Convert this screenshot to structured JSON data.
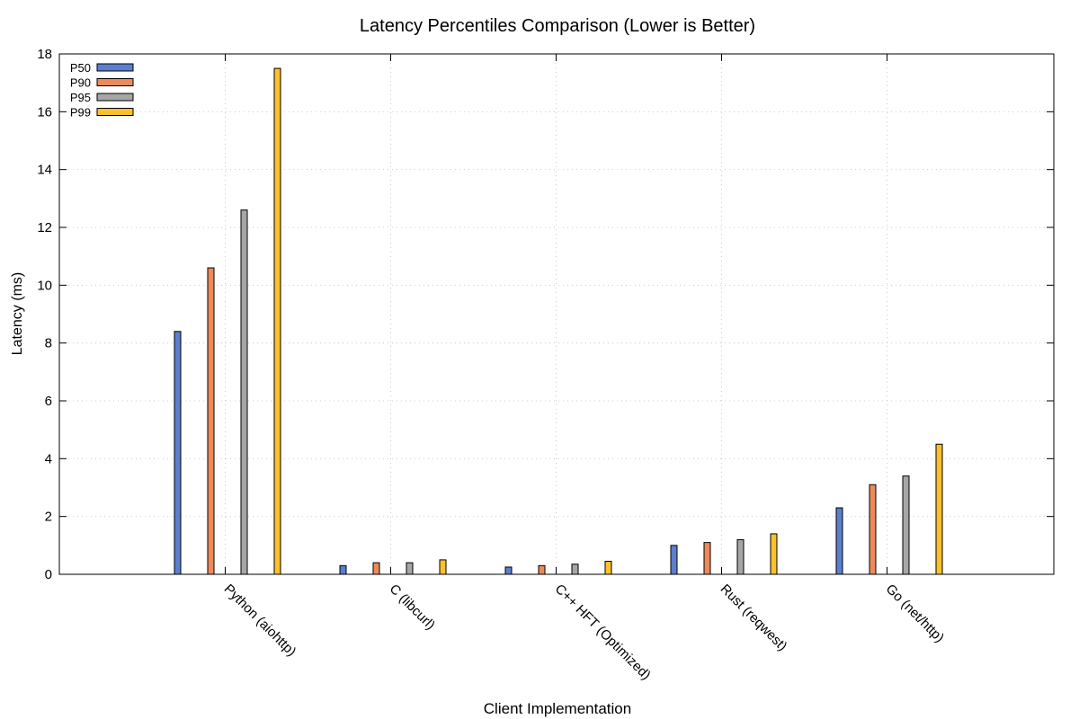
{
  "chart_data": {
    "type": "bar",
    "title": "Latency Percentiles Comparison (Lower is Better)",
    "xlabel": "Client Implementation",
    "ylabel": "Latency (ms)",
    "ylim": [
      0,
      18
    ],
    "yticks": [
      "0",
      "2",
      "4",
      "6",
      "8",
      "10",
      "12",
      "14",
      "16",
      "18"
    ],
    "grid": true,
    "legend_position": "top-left",
    "categories": [
      "Python (aiohttp)",
      "C (libcurl)",
      "C++ HFT (Optimized)",
      "Rust (reqwest)",
      "Go (net/http)"
    ],
    "series": [
      {
        "name": "P50",
        "color": "#5b7fcf",
        "values": [
          8.4,
          0.3,
          0.25,
          1.0,
          2.3
        ]
      },
      {
        "name": "P90",
        "color": "#ec8a5b",
        "values": [
          10.6,
          0.4,
          0.3,
          1.1,
          3.1
        ]
      },
      {
        "name": "P95",
        "color": "#a6a6a6",
        "values": [
          12.6,
          0.4,
          0.35,
          1.2,
          3.4
        ]
      },
      {
        "name": "P99",
        "color": "#fbc02d",
        "values": [
          17.5,
          0.5,
          0.45,
          1.4,
          4.5
        ]
      }
    ]
  }
}
